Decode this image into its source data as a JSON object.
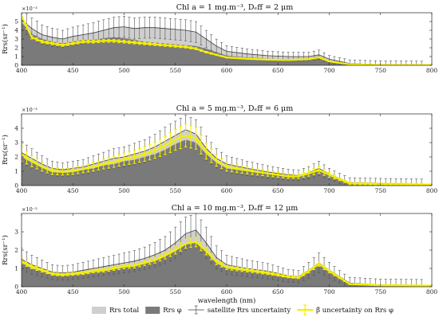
{
  "colors": {
    "total_fill": "#cfcfcf",
    "phi_fill": "#7a7a7a",
    "yellow": "#f5ef00",
    "errorbar": "#555555",
    "line_dark": "#3b3b3b"
  },
  "chart_data": [
    {
      "type": "area",
      "title": "Chl a = 1 mg.m⁻³, Dₑff = 2 μm",
      "ylabel": "Rrs(sr⁻¹)",
      "exponent_label": "×10⁻³",
      "xlim": [
        400,
        800
      ],
      "ylim": [
        0,
        6
      ],
      "xticks": [
        400,
        450,
        500,
        550,
        600,
        650,
        700,
        750,
        800
      ],
      "yticks": [
        0,
        1,
        2,
        3,
        4,
        5
      ],
      "total": [
        [
          400,
          5.2
        ],
        [
          410,
          4.2
        ],
        [
          420,
          3.5
        ],
        [
          430,
          3.2
        ],
        [
          440,
          3.0
        ],
        [
          450,
          3.3
        ],
        [
          460,
          3.5
        ],
        [
          470,
          3.7
        ],
        [
          480,
          4.0
        ],
        [
          490,
          4.3
        ],
        [
          500,
          4.4
        ],
        [
          510,
          4.2
        ],
        [
          520,
          4.3
        ],
        [
          530,
          4.3
        ],
        [
          540,
          4.2
        ],
        [
          550,
          4.1
        ],
        [
          560,
          4.0
        ],
        [
          570,
          3.8
        ],
        [
          580,
          3.0
        ],
        [
          590,
          2.2
        ],
        [
          600,
          1.6
        ],
        [
          620,
          1.3
        ],
        [
          640,
          1.1
        ],
        [
          660,
          1.0
        ],
        [
          680,
          1.0
        ],
        [
          690,
          1.2
        ],
        [
          700,
          0.7
        ],
        [
          720,
          0.2
        ],
        [
          750,
          0.08
        ],
        [
          800,
          0.05
        ]
      ],
      "phi": [
        [
          400,
          4.9
        ],
        [
          410,
          3.6
        ],
        [
          420,
          3.0
        ],
        [
          430,
          2.7
        ],
        [
          440,
          2.5
        ],
        [
          450,
          2.7
        ],
        [
          460,
          2.9
        ],
        [
          470,
          2.9
        ],
        [
          480,
          3.1
        ],
        [
          490,
          3.2
        ],
        [
          500,
          3.1
        ],
        [
          510,
          2.9
        ],
        [
          520,
          2.7
        ],
        [
          530,
          2.6
        ],
        [
          540,
          2.5
        ],
        [
          550,
          2.4
        ],
        [
          560,
          2.3
        ],
        [
          570,
          2.2
        ],
        [
          580,
          1.9
        ],
        [
          590,
          1.5
        ],
        [
          600,
          1.1
        ],
        [
          620,
          0.9
        ],
        [
          640,
          0.75
        ],
        [
          660,
          0.7
        ],
        [
          680,
          0.8
        ],
        [
          690,
          1.05
        ],
        [
          700,
          0.5
        ],
        [
          720,
          0.15
        ],
        [
          750,
          0.05
        ],
        [
          800,
          0.03
        ]
      ],
      "beta": [
        [
          400,
          5.6
        ],
        [
          410,
          3.2
        ],
        [
          420,
          2.7
        ],
        [
          430,
          2.5
        ],
        [
          440,
          2.3
        ],
        [
          450,
          2.5
        ],
        [
          460,
          2.7
        ],
        [
          470,
          2.7
        ],
        [
          480,
          2.8
        ],
        [
          490,
          2.8
        ],
        [
          500,
          2.7
        ],
        [
          510,
          2.6
        ],
        [
          520,
          2.5
        ],
        [
          530,
          2.4
        ],
        [
          540,
          2.3
        ],
        [
          550,
          2.2
        ],
        [
          560,
          2.1
        ],
        [
          570,
          1.9
        ],
        [
          580,
          1.5
        ],
        [
          590,
          1.2
        ],
        [
          600,
          0.9
        ],
        [
          620,
          0.75
        ],
        [
          640,
          0.65
        ],
        [
          660,
          0.6
        ],
        [
          680,
          0.7
        ],
        [
          690,
          0.9
        ],
        [
          700,
          0.45
        ],
        [
          720,
          0.12
        ],
        [
          750,
          0.04
        ],
        [
          800,
          0.02
        ]
      ],
      "total_err": 1.2,
      "beta_err": 0.25
    },
    {
      "type": "area",
      "title": "Chl a = 5 mg.m⁻³, Dₑff = 6 μm",
      "ylabel": "Rrs(sr⁻¹)",
      "exponent_label": "×10⁻³",
      "xlim": [
        400,
        800
      ],
      "ylim": [
        0,
        5
      ],
      "xticks": [
        400,
        450,
        500,
        550,
        600,
        650,
        700,
        750,
        800
      ],
      "yticks": [
        0,
        1,
        2,
        3,
        4
      ],
      "total": [
        [
          400,
          2.3
        ],
        [
          410,
          1.9
        ],
        [
          420,
          1.5
        ],
        [
          430,
          1.2
        ],
        [
          440,
          1.1
        ],
        [
          450,
          1.2
        ],
        [
          460,
          1.3
        ],
        [
          470,
          1.5
        ],
        [
          480,
          1.7
        ],
        [
          490,
          1.9
        ],
        [
          500,
          2.0
        ],
        [
          510,
          2.2
        ],
        [
          520,
          2.4
        ],
        [
          530,
          2.7
        ],
        [
          540,
          3.1
        ],
        [
          550,
          3.5
        ],
        [
          560,
          3.9
        ],
        [
          570,
          3.6
        ],
        [
          580,
          2.6
        ],
        [
          590,
          1.9
        ],
        [
          600,
          1.5
        ],
        [
          620,
          1.2
        ],
        [
          640,
          0.95
        ],
        [
          660,
          0.75
        ],
        [
          670,
          0.7
        ],
        [
          680,
          0.9
        ],
        [
          690,
          1.2
        ],
        [
          700,
          0.8
        ],
        [
          720,
          0.2
        ],
        [
          750,
          0.15
        ],
        [
          800,
          0.1
        ]
      ],
      "phi": [
        [
          400,
          2.0
        ],
        [
          410,
          1.6
        ],
        [
          420,
          1.3
        ],
        [
          430,
          1.0
        ],
        [
          440,
          0.95
        ],
        [
          450,
          1.0
        ],
        [
          460,
          1.1
        ],
        [
          470,
          1.2
        ],
        [
          480,
          1.4
        ],
        [
          490,
          1.5
        ],
        [
          500,
          1.7
        ],
        [
          510,
          1.8
        ],
        [
          520,
          2.0
        ],
        [
          530,
          2.2
        ],
        [
          540,
          2.5
        ],
        [
          550,
          2.9
        ],
        [
          560,
          3.2
        ],
        [
          570,
          3.0
        ],
        [
          580,
          2.2
        ],
        [
          590,
          1.6
        ],
        [
          600,
          1.2
        ],
        [
          620,
          1.0
        ],
        [
          640,
          0.8
        ],
        [
          660,
          0.6
        ],
        [
          670,
          0.6
        ],
        [
          680,
          0.8
        ],
        [
          690,
          1.0
        ],
        [
          700,
          0.7
        ],
        [
          720,
          0.15
        ],
        [
          750,
          0.1
        ],
        [
          800,
          0.07
        ]
      ],
      "beta": [
        [
          400,
          2.2
        ],
        [
          410,
          1.7
        ],
        [
          420,
          1.3
        ],
        [
          430,
          1.0
        ],
        [
          440,
          0.95
        ],
        [
          450,
          1.0
        ],
        [
          460,
          1.15
        ],
        [
          470,
          1.3
        ],
        [
          480,
          1.5
        ],
        [
          490,
          1.65
        ],
        [
          500,
          1.85
        ],
        [
          510,
          2.0
        ],
        [
          520,
          2.2
        ],
        [
          530,
          2.45
        ],
        [
          540,
          2.8
        ],
        [
          550,
          3.2
        ],
        [
          560,
          3.5
        ],
        [
          570,
          3.3
        ],
        [
          580,
          2.4
        ],
        [
          590,
          1.75
        ],
        [
          600,
          1.3
        ],
        [
          620,
          1.05
        ],
        [
          640,
          0.85
        ],
        [
          660,
          0.65
        ],
        [
          670,
          0.65
        ],
        [
          680,
          0.85
        ],
        [
          690,
          1.1
        ],
        [
          700,
          0.75
        ],
        [
          720,
          0.15
        ],
        [
          750,
          0.1
        ],
        [
          800,
          0.08
        ]
      ],
      "total_err": 1.0,
      "beta_err": 0.8
    },
    {
      "type": "area",
      "title": "Chl a = 10 mg.m⁻³, Dₑff = 12 μm",
      "ylabel": "Rrs(sr⁻¹)",
      "exponent_label": "×10⁻³",
      "xlabel": "wavelength (nm)",
      "xlim": [
        400,
        800
      ],
      "ylim": [
        0,
        4
      ],
      "xticks": [
        400,
        450,
        500,
        550,
        600,
        650,
        700,
        750,
        800
      ],
      "yticks": [
        0,
        1,
        2,
        3
      ],
      "total": [
        [
          400,
          1.5
        ],
        [
          410,
          1.2
        ],
        [
          420,
          1.0
        ],
        [
          430,
          0.8
        ],
        [
          440,
          0.75
        ],
        [
          450,
          0.8
        ],
        [
          460,
          0.9
        ],
        [
          470,
          1.0
        ],
        [
          480,
          1.1
        ],
        [
          490,
          1.2
        ],
        [
          500,
          1.3
        ],
        [
          510,
          1.4
        ],
        [
          520,
          1.55
        ],
        [
          530,
          1.75
        ],
        [
          540,
          2.0
        ],
        [
          550,
          2.4
        ],
        [
          560,
          2.9
        ],
        [
          570,
          3.1
        ],
        [
          580,
          2.4
        ],
        [
          590,
          1.6
        ],
        [
          600,
          1.2
        ],
        [
          620,
          1.0
        ],
        [
          640,
          0.85
        ],
        [
          660,
          0.6
        ],
        [
          670,
          0.55
        ],
        [
          680,
          0.9
        ],
        [
          690,
          1.3
        ],
        [
          700,
          0.9
        ],
        [
          720,
          0.2
        ],
        [
          750,
          0.1
        ],
        [
          800,
          0.08
        ]
      ],
      "phi": [
        [
          400,
          1.3
        ],
        [
          410,
          1.0
        ],
        [
          420,
          0.85
        ],
        [
          430,
          0.65
        ],
        [
          440,
          0.6
        ],
        [
          450,
          0.65
        ],
        [
          460,
          0.7
        ],
        [
          470,
          0.8
        ],
        [
          480,
          0.85
        ],
        [
          490,
          0.95
        ],
        [
          500,
          1.05
        ],
        [
          510,
          1.1
        ],
        [
          520,
          1.25
        ],
        [
          530,
          1.4
        ],
        [
          540,
          1.65
        ],
        [
          550,
          1.95
        ],
        [
          560,
          2.3
        ],
        [
          570,
          2.4
        ],
        [
          580,
          1.9
        ],
        [
          590,
          1.3
        ],
        [
          600,
          1.0
        ],
        [
          620,
          0.85
        ],
        [
          640,
          0.7
        ],
        [
          660,
          0.5
        ],
        [
          670,
          0.45
        ],
        [
          680,
          0.8
        ],
        [
          690,
          1.2
        ],
        [
          700,
          0.8
        ],
        [
          720,
          0.15
        ],
        [
          750,
          0.08
        ],
        [
          800,
          0.06
        ]
      ],
      "beta": [
        [
          400,
          1.4
        ],
        [
          410,
          1.1
        ],
        [
          420,
          0.9
        ],
        [
          430,
          0.7
        ],
        [
          440,
          0.65
        ],
        [
          450,
          0.7
        ],
        [
          460,
          0.75
        ],
        [
          470,
          0.85
        ],
        [
          480,
          0.9
        ],
        [
          490,
          1.0
        ],
        [
          500,
          1.1
        ],
        [
          510,
          1.15
        ],
        [
          520,
          1.3
        ],
        [
          530,
          1.45
        ],
        [
          540,
          1.7
        ],
        [
          550,
          2.0
        ],
        [
          560,
          2.35
        ],
        [
          570,
          2.45
        ],
        [
          580,
          1.95
        ],
        [
          590,
          1.35
        ],
        [
          600,
          1.05
        ],
        [
          620,
          0.9
        ],
        [
          640,
          0.75
        ],
        [
          660,
          0.55
        ],
        [
          670,
          0.5
        ],
        [
          680,
          0.85
        ],
        [
          690,
          1.25
        ],
        [
          700,
          0.85
        ],
        [
          720,
          0.15
        ],
        [
          750,
          0.08
        ],
        [
          800,
          0.06
        ]
      ],
      "total_err": 0.9,
      "beta_err": 0.3
    }
  ],
  "legend": {
    "items": [
      {
        "label": "Rrs total",
        "kind": "total-swatch"
      },
      {
        "label": "Rrs φ",
        "kind": "phi-swatch"
      },
      {
        "label": "satellite Rrs uncertainty",
        "kind": "errorbar"
      },
      {
        "label": "β̃ uncertainty on Rrs φ",
        "kind": "yellow-errorbar"
      }
    ]
  }
}
